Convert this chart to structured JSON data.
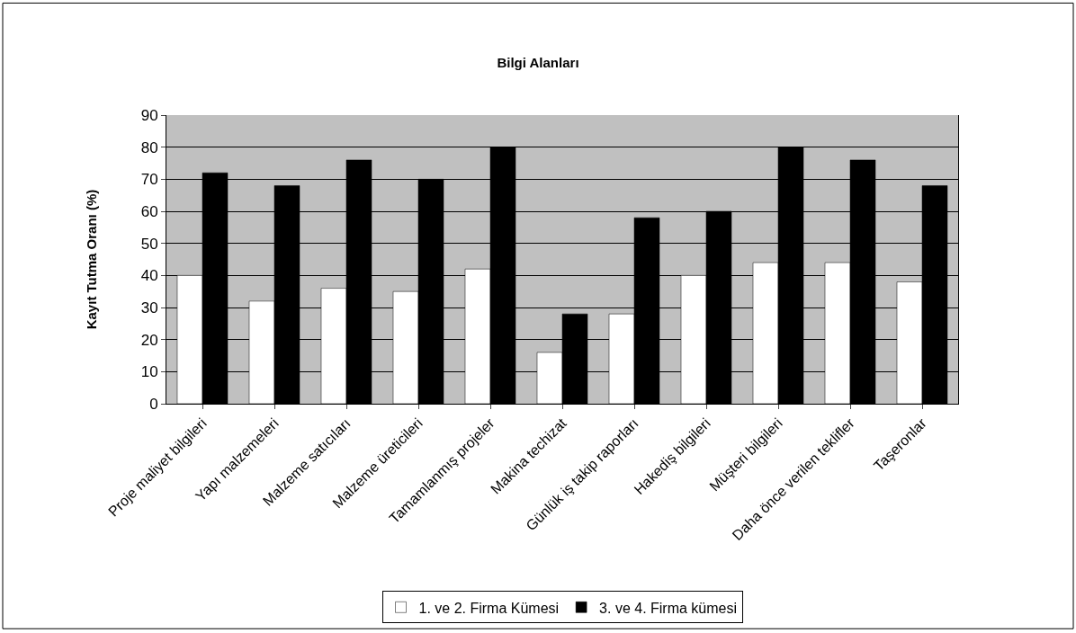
{
  "chart_data": {
    "type": "bar",
    "title": "Bilgi Alanları",
    "ylabel": "Kayıt Tutma Oranı (%)",
    "categories": [
      "Proje maliyet bilgileri",
      "Yapı malzemeleri",
      "Malzeme satıcıları",
      "Malzeme üreticileri",
      "Tamamlanmış projeler",
      "Makina techizat",
      "Günlük iş takip raporları",
      "Hakediş bilgileri",
      "Müşteri bilgileri",
      "Daha önce verilen teklifler",
      "Taşeronlar"
    ],
    "series": [
      {
        "name": "1. ve 2. Firma Kümesi",
        "color": "#ffffff",
        "values": [
          40,
          32,
          36,
          35,
          42,
          16,
          28,
          40,
          44,
          44,
          38
        ]
      },
      {
        "name": "3. ve 4. Firma kümesi",
        "color": "#000000",
        "values": [
          72,
          68,
          76,
          70,
          80,
          28,
          58,
          60,
          80,
          76,
          68
        ]
      }
    ],
    "ylim": [
      0,
      90
    ],
    "yticks": [
      0,
      10,
      20,
      30,
      40,
      50,
      60,
      70,
      80,
      90
    ],
    "grid": "y",
    "legend": "bottom"
  }
}
